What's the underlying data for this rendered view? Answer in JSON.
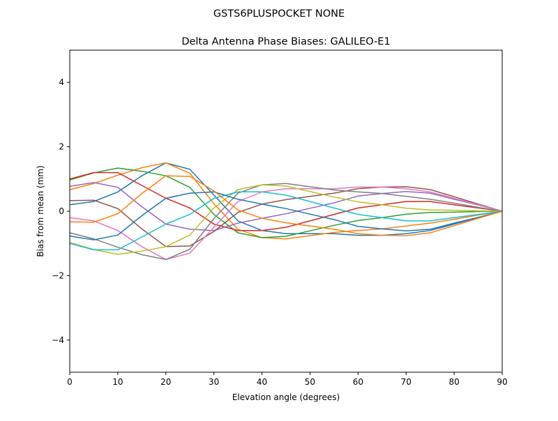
{
  "chart_data": {
    "type": "line",
    "suptitle": "GSTS6PLUSPOCKET NONE",
    "title": "Delta Antenna Phase Biases: GALILEO-E1",
    "xlabel": "Elevation angle (degrees)",
    "ylabel": "Bias from mean (mm)",
    "xlim": [
      0,
      90
    ],
    "ylim": [
      -5,
      5
    ],
    "xticks": [
      0,
      10,
      20,
      30,
      40,
      50,
      60,
      70,
      80,
      90
    ],
    "yticks": [
      -4,
      -2,
      0,
      2,
      4
    ],
    "ytick_labels": [
      "−4",
      "−2",
      "0",
      "2",
      "4"
    ],
    "grid": false,
    "colors": [
      "#1f77b4",
      "#ff7f0e",
      "#2ca02c",
      "#d62728",
      "#9467bd",
      "#8c564b",
      "#e377c2",
      "#7f7f7f",
      "#bcbd22",
      "#17becf"
    ],
    "x": [
      0,
      5,
      10,
      15,
      20,
      25,
      30,
      35,
      40,
      45,
      50,
      55,
      60,
      65,
      70,
      75,
      80,
      85,
      90
    ],
    "series": [
      {
        "values": [
          0.2,
          0.3,
          0.6,
          1.1,
          1.5,
          1.3,
          0.5,
          -0.3,
          -0.6,
          -0.7,
          -0.7,
          -0.7,
          -0.75,
          -0.75,
          -0.7,
          -0.6,
          -0.4,
          -0.2,
          0
        ]
      },
      {
        "values": [
          0.67,
          0.86,
          1.12,
          1.35,
          1.5,
          1.18,
          0.23,
          -0.56,
          -0.82,
          -0.86,
          -0.76,
          -0.66,
          -0.6,
          -0.55,
          -0.46,
          -0.37,
          -0.25,
          -0.12,
          0
        ]
      },
      {
        "values": [
          0.97,
          1.19,
          1.34,
          1.24,
          1.1,
          0.74,
          -0.1,
          -0.67,
          -0.82,
          -0.78,
          -0.61,
          -0.44,
          -0.29,
          -0.2,
          -0.09,
          -0.04,
          -0.03,
          -0.01,
          0
        ]
      },
      {
        "values": [
          1.0,
          1.2,
          1.2,
          0.8,
          0.4,
          0.1,
          -0.4,
          -0.6,
          -0.6,
          -0.5,
          -0.3,
          -0.1,
          0.1,
          0.2,
          0.3,
          0.3,
          0.2,
          0.1,
          0
        ]
      },
      {
        "values": [
          0.77,
          0.89,
          0.74,
          0.14,
          -0.4,
          -0.56,
          -0.6,
          -0.37,
          -0.22,
          -0.08,
          0.09,
          0.26,
          0.47,
          0.55,
          0.61,
          0.56,
          0.37,
          0.19,
          0
        ]
      },
      {
        "values": [
          0.33,
          0.34,
          0.08,
          -0.55,
          -1.1,
          -1.08,
          -0.63,
          -0.04,
          0.22,
          0.36,
          0.46,
          0.56,
          0.7,
          0.75,
          0.76,
          0.67,
          0.45,
          0.22,
          0
        ]
      },
      {
        "values": [
          -0.2,
          -0.3,
          -0.6,
          -1.1,
          -1.5,
          -1.3,
          -0.5,
          0.3,
          0.6,
          0.7,
          0.7,
          0.7,
          0.75,
          0.75,
          0.7,
          0.6,
          0.4,
          0.2,
          0
        ]
      },
      {
        "values": [
          -0.67,
          -0.86,
          -1.12,
          -1.35,
          -1.5,
          -1.18,
          -0.23,
          0.56,
          0.82,
          0.86,
          0.76,
          0.66,
          0.6,
          0.55,
          0.46,
          0.37,
          0.25,
          0.12,
          0
        ]
      },
      {
        "values": [
          -0.97,
          -1.19,
          -1.34,
          -1.24,
          -1.1,
          -0.74,
          0.1,
          0.67,
          0.82,
          0.78,
          0.61,
          0.44,
          0.29,
          0.2,
          0.09,
          0.04,
          0.03,
          0.01,
          0
        ]
      },
      {
        "values": [
          -1.0,
          -1.2,
          -1.2,
          -0.8,
          -0.4,
          -0.1,
          0.4,
          0.6,
          0.6,
          0.5,
          0.3,
          0.1,
          -0.1,
          -0.2,
          -0.3,
          -0.3,
          -0.2,
          -0.1,
          0
        ]
      },
      {
        "values": [
          -0.77,
          -0.89,
          -0.74,
          -0.14,
          0.4,
          0.56,
          0.6,
          0.37,
          0.22,
          0.08,
          -0.09,
          -0.26,
          -0.47,
          -0.55,
          -0.61,
          -0.56,
          -0.37,
          -0.19,
          0
        ]
      },
      {
        "values": [
          -0.33,
          -0.34,
          -0.08,
          0.55,
          1.1,
          1.08,
          0.63,
          0.04,
          -0.22,
          -0.36,
          -0.46,
          -0.56,
          -0.7,
          -0.75,
          -0.76,
          -0.67,
          -0.45,
          -0.22,
          0
        ]
      }
    ]
  }
}
